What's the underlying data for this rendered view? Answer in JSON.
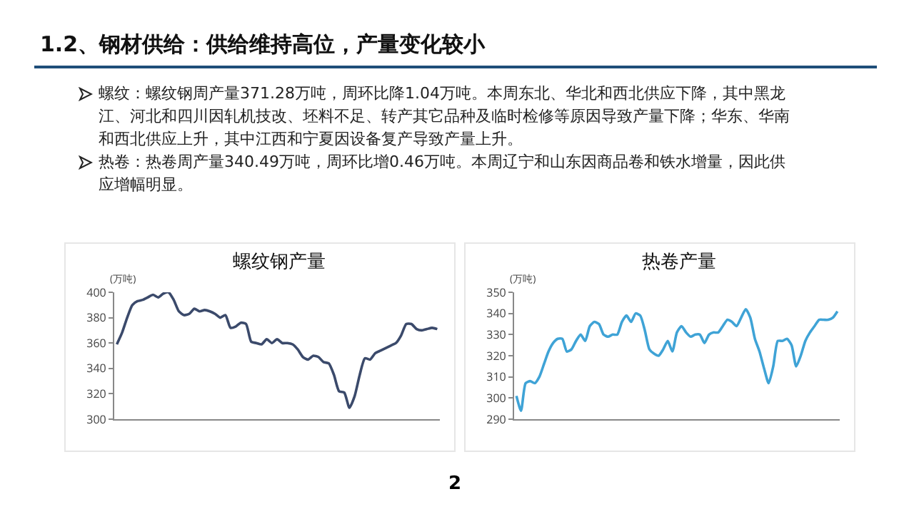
{
  "chart_data": [
    {
      "type": "other",
      "title": "1.2、钢材供给：供给维持高位，产量变化较小",
      "annotations": [
        "螺纹：螺纹钢周产量371.28万吨，周环比降1.04万吨。本周东北、华北和西北供应下降，其中黑龙江、河北和四川因轧机技改、坯料不足、转产其它品种及临时检修等原因导致产量下降；华东、华南和西北供应上升，其中江西和宁夏因设备复产导致产量上升。",
        "热卷：热卷周产量340.49万吨，周环比增0.46万吨。本周辽宁和山东因商品卷和铁水增量，因此供应增幅明显。",
        "2"
      ]
    },
    {
      "type": "line",
      "title": "螺纹钢产量",
      "ylabel": "(万吨)",
      "ylim": [
        300,
        400
      ],
      "yticks": [
        300,
        320,
        340,
        360,
        380,
        400
      ],
      "grid": false,
      "tick_labels": "y",
      "color": "#3b4a6b",
      "categories": [
        null,
        null,
        null,
        null,
        null,
        null,
        null,
        null,
        null,
        null,
        null,
        null,
        null,
        null,
        null,
        null,
        null,
        null,
        null,
        null,
        null,
        null,
        null,
        null,
        null,
        null,
        null,
        null,
        null,
        null,
        null,
        null,
        null,
        null,
        null,
        null,
        null,
        null,
        null,
        null,
        null,
        null,
        null,
        null,
        null,
        null,
        null,
        null,
        null,
        null,
        null,
        null,
        null,
        null,
        null,
        null,
        null,
        null,
        null,
        null,
        null,
        null,
        null
      ],
      "values": [
        359,
        368,
        380,
        390,
        393,
        394,
        396,
        398,
        396,
        399,
        400,
        394,
        385,
        382,
        383,
        387,
        385,
        386,
        385,
        383,
        380,
        382,
        372,
        373,
        376,
        375,
        361,
        360,
        359,
        363,
        360,
        363,
        360,
        360,
        359,
        355,
        349,
        347,
        350,
        349,
        345,
        344,
        335,
        322,
        321,
        309,
        318,
        335,
        348,
        347,
        352,
        354,
        356,
        358,
        360,
        366,
        375,
        375,
        371,
        370,
        371,
        372,
        371
      ]
    },
    {
      "type": "line",
      "title": "热卷产量",
      "ylabel": "(万吨)",
      "ylim": [
        290,
        350
      ],
      "yticks": [
        290,
        300,
        310,
        320,
        330,
        340,
        350
      ],
      "grid": false,
      "tick_labels": "y",
      "color": "#3fa3d6",
      "categories": [
        null,
        null,
        null,
        null,
        null,
        null,
        null,
        null,
        null,
        null,
        null,
        null,
        null,
        null,
        null,
        null,
        null,
        null,
        null,
        null,
        null,
        null,
        null,
        null,
        null,
        null,
        null,
        null,
        null,
        null,
        null,
        null,
        null,
        null,
        null,
        null,
        null,
        null,
        null,
        null,
        null,
        null,
        null,
        null,
        null,
        null,
        null,
        null,
        null,
        null,
        null,
        null,
        null,
        null,
        null,
        null,
        null,
        null,
        null,
        null,
        null,
        null,
        null,
        null,
        null,
        null,
        null,
        null,
        null,
        null,
        null
      ],
      "values": [
        301,
        294,
        307,
        308,
        307,
        310,
        316,
        322,
        326,
        328,
        328,
        322,
        323,
        327,
        330,
        327,
        334,
        336,
        335,
        330,
        329,
        330,
        330,
        336,
        339,
        336,
        340,
        339,
        332,
        323,
        321,
        320,
        323,
        327,
        322,
        331,
        334,
        331,
        329,
        330,
        330,
        326,
        330,
        331,
        331,
        334,
        337,
        336,
        334,
        338,
        342,
        338,
        328,
        322,
        314,
        307,
        315,
        327,
        327,
        328,
        325,
        315,
        320,
        327,
        331,
        334,
        337,
        337,
        337,
        338,
        341
      ]
    }
  ]
}
